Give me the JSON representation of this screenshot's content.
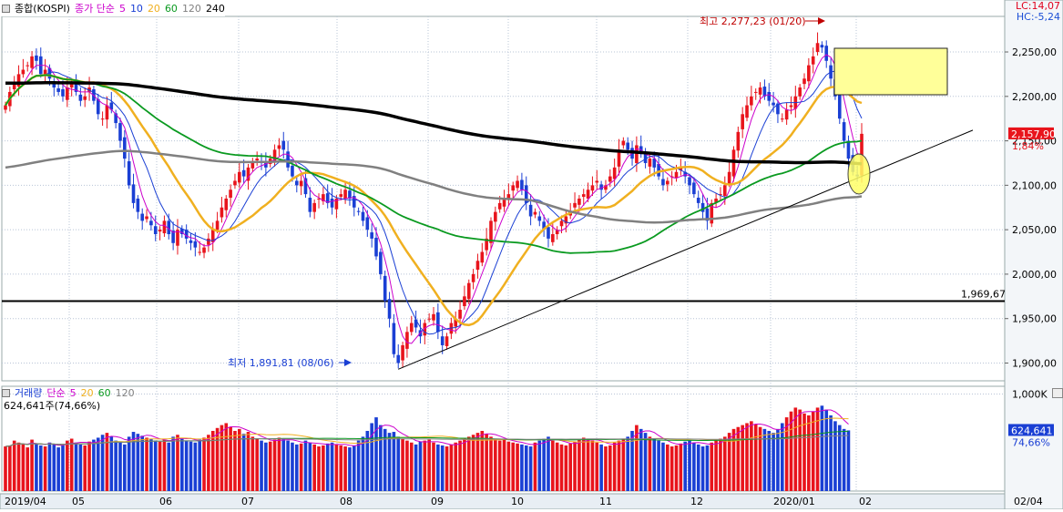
{
  "legend": {
    "index_name": "종합(KOSPI)",
    "ma_type": "종가 단순",
    "ma_periods": [
      "5",
      "10",
      "20",
      "60",
      "120",
      "240"
    ],
    "ma_colors": [
      "#cc00cc",
      "#1a3fd4",
      "#f0b020",
      "#0a9a20",
      "#808080",
      "#000000"
    ]
  },
  "volume_legend": {
    "title": "거래량",
    "ma_type": "단순",
    "ma_periods": [
      "5",
      "20",
      "60",
      "120"
    ],
    "ma_colors": [
      "#cc00cc",
      "#f0b020",
      "#0a9a20",
      "#808080"
    ],
    "total_label": "624,641주(74,66%)"
  },
  "corner": {
    "lc": "LC:14,07",
    "hc": "HC:-5,24"
  },
  "annotations": {
    "high_label": "최고 2,277,23 (01/20)",
    "low_label": "최저 1,891,81 (08/06)",
    "hline_label": "1,969,67",
    "price_badge": "2,157,90",
    "price_change": "1,84%",
    "volume_badge": "624,641",
    "volume_change": "74,66%"
  },
  "chart_data": {
    "type": "candlestick",
    "y_ticks": [
      "1,900,00",
      "1,950,00",
      "2,000,00",
      "2,050,00",
      "2,100,00",
      "2,150,00",
      "2,200,00",
      "2,250,00"
    ],
    "y_tick_values": [
      1900,
      1950,
      2000,
      2050,
      2100,
      2150,
      2200,
      2250
    ],
    "ylim": [
      1880,
      2290
    ],
    "volume_ticks": [
      "1,000K"
    ],
    "volume_tick_values": [
      1000
    ],
    "volume_ylim": [
      0,
      1080
    ],
    "x_labels": [
      "2019/04",
      "05",
      "06",
      "07",
      "08",
      "09",
      "10",
      "11",
      "12",
      "2020/01",
      "02",
      "02/04"
    ],
    "horizontal_line": 1969.67,
    "high": 2277.23,
    "low": 1891.81,
    "last_close": 2157.9,
    "last_volume": 624.641,
    "closes": [
      2190,
      2205,
      2215,
      2225,
      2230,
      2235,
      2245,
      2240,
      2225,
      2230,
      2220,
      2210,
      2205,
      2200,
      2210,
      2215,
      2205,
      2195,
      2200,
      2210,
      2195,
      2180,
      2175,
      2190,
      2185,
      2170,
      2150,
      2130,
      2100,
      2080,
      2070,
      2060,
      2065,
      2055,
      2045,
      2050,
      2060,
      2045,
      2035,
      2050,
      2045,
      2040,
      2035,
      2030,
      2025,
      2030,
      2040,
      2050,
      2060,
      2075,
      2085,
      2095,
      2105,
      2115,
      2110,
      2120,
      2125,
      2130,
      2125,
      2120,
      2130,
      2140,
      2145,
      2140,
      2120,
      2110,
      2100,
      2105,
      2090,
      2070,
      2080,
      2085,
      2090,
      2080,
      2075,
      2085,
      2090,
      2095,
      2085,
      2075,
      2070,
      2060,
      2050,
      2040,
      2020,
      2000,
      1970,
      1950,
      1910,
      1900,
      1920,
      1935,
      1945,
      1940,
      1930,
      1945,
      1950,
      1955,
      1935,
      1920,
      1930,
      1945,
      1950,
      1960,
      1975,
      1990,
      2000,
      2015,
      2025,
      2040,
      2060,
      2070,
      2080,
      2085,
      2090,
      2100,
      2105,
      2095,
      2080,
      2065,
      2070,
      2060,
      2050,
      2040,
      2045,
      2050,
      2060,
      2065,
      2070,
      2080,
      2085,
      2090,
      2095,
      2100,
      2105,
      2095,
      2100,
      2110,
      2120,
      2140,
      2150,
      2140,
      2130,
      2145,
      2135,
      2125,
      2130,
      2120,
      2110,
      2100,
      2105,
      2110,
      2115,
      2120,
      2110,
      2100,
      2090,
      2080,
      2070,
      2060,
      2080,
      2085,
      2090,
      2100,
      2115,
      2140,
      2160,
      2180,
      2190,
      2200,
      2205,
      2210,
      2200,
      2195,
      2190,
      2180,
      2175,
      2185,
      2190,
      2200,
      2210,
      2220,
      2235,
      2245,
      2260,
      2255,
      2240,
      2220,
      2200,
      2175,
      2150,
      2130,
      2115,
      2110,
      2157.9
    ],
    "volumes": [
      460,
      470,
      520,
      500,
      480,
      450,
      530,
      490,
      470,
      460,
      500,
      480,
      450,
      470,
      520,
      540,
      500,
      480,
      470,
      510,
      530,
      550,
      580,
      600,
      560,
      520,
      500,
      480,
      560,
      610,
      590,
      570,
      550,
      540,
      520,
      510,
      530,
      500,
      560,
      580,
      540,
      520,
      510,
      500,
      530,
      550,
      580,
      620,
      650,
      680,
      700,
      660,
      620,
      640,
      590,
      610,
      560,
      540,
      520,
      500,
      510,
      530,
      550,
      540,
      520,
      500,
      480,
      490,
      520,
      500,
      480,
      460,
      470,
      490,
      500,
      480,
      470,
      460,
      450,
      470,
      520,
      560,
      620,
      700,
      760,
      680,
      640,
      600,
      610,
      560,
      540,
      520,
      500,
      480,
      510,
      520,
      530,
      500,
      480,
      470,
      460,
      480,
      500,
      520,
      540,
      560,
      580,
      600,
      620,
      590,
      560,
      540,
      520,
      530,
      510,
      500,
      490,
      480,
      470,
      460,
      500,
      520,
      540,
      560,
      520,
      500,
      480,
      470,
      490,
      510,
      530,
      550,
      540,
      520,
      500,
      480,
      460,
      470,
      500,
      520,
      540,
      560,
      620,
      680,
      640,
      600,
      560,
      540,
      520,
      500,
      480,
      460,
      470,
      490,
      510,
      520,
      500,
      480,
      460,
      470,
      500,
      520,
      540,
      560,
      600,
      640,
      660,
      680,
      700,
      720,
      690,
      660,
      640,
      620,
      600,
      640,
      700,
      760,
      820,
      860,
      840,
      800,
      780,
      820,
      860,
      880,
      840,
      780,
      720,
      680,
      640,
      625
    ]
  }
}
